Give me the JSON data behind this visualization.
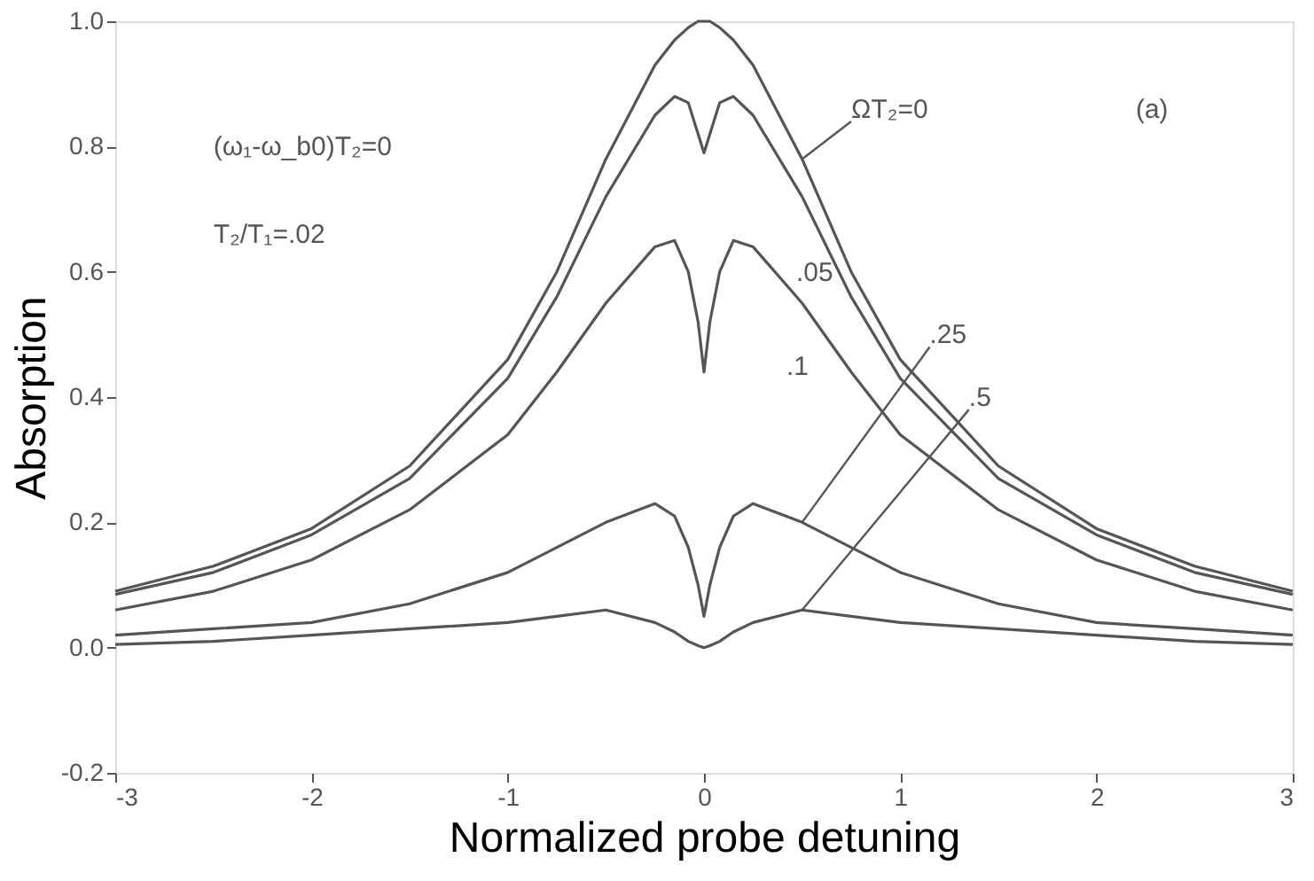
{
  "chart_data": {
    "type": "line",
    "xlabel": "Normalized probe detuning",
    "ylabel": "Absorption",
    "annotations": [
      "(ω₁-ω_b0)T₂=0",
      "T₂/T₁=.02",
      "(a)"
    ],
    "x": [
      -3,
      -2.5,
      -2,
      -1.5,
      -1,
      -0.75,
      -0.5,
      -0.25,
      -0.15,
      -0.08,
      -0.03,
      0,
      0.03,
      0.08,
      0.15,
      0.25,
      0.5,
      0.75,
      1,
      1.5,
      2,
      2.5,
      3
    ],
    "series": [
      {
        "name": "ΩT₂=0",
        "color": "#555555",
        "values": [
          0.09,
          0.13,
          0.19,
          0.29,
          0.46,
          0.6,
          0.78,
          0.93,
          0.97,
          0.99,
          1.0,
          1.0,
          1.0,
          0.99,
          0.97,
          0.93,
          0.78,
          0.6,
          0.46,
          0.29,
          0.19,
          0.13,
          0.09
        ]
      },
      {
        "name": ".05",
        "color": "#555555",
        "values": [
          0.085,
          0.12,
          0.18,
          0.27,
          0.43,
          0.56,
          0.72,
          0.85,
          0.88,
          0.87,
          0.82,
          0.79,
          0.82,
          0.87,
          0.88,
          0.85,
          0.72,
          0.56,
          0.43,
          0.27,
          0.18,
          0.12,
          0.085
        ]
      },
      {
        "name": ".1",
        "color": "#555555",
        "values": [
          0.06,
          0.09,
          0.14,
          0.22,
          0.34,
          0.44,
          0.55,
          0.64,
          0.65,
          0.6,
          0.52,
          0.44,
          0.52,
          0.6,
          0.65,
          0.64,
          0.55,
          0.44,
          0.34,
          0.22,
          0.14,
          0.09,
          0.06
        ]
      },
      {
        "name": ".25",
        "color": "#555555",
        "values": [
          0.02,
          0.03,
          0.04,
          0.07,
          0.12,
          0.16,
          0.2,
          0.23,
          0.21,
          0.16,
          0.1,
          0.05,
          0.1,
          0.16,
          0.21,
          0.23,
          0.2,
          0.16,
          0.12,
          0.07,
          0.04,
          0.03,
          0.02
        ]
      },
      {
        "name": ".5",
        "color": "#555555",
        "values": [
          0.005,
          0.01,
          0.02,
          0.03,
          0.04,
          0.05,
          0.06,
          0.04,
          0.025,
          0.01,
          0.003,
          0.0,
          0.003,
          0.01,
          0.025,
          0.04,
          0.06,
          0.05,
          0.04,
          0.03,
          0.02,
          0.01,
          0.005
        ]
      }
    ],
    "xlim": [
      -3,
      3
    ],
    "ylim": [
      -0.2,
      1.0
    ],
    "xticks": [
      -3,
      -2,
      -1,
      0,
      1,
      2,
      3
    ],
    "yticks": [
      {
        "value": -0.2,
        "label": "-0.2"
      },
      {
        "value": 0,
        "label": "0.0"
      },
      {
        "value": 0.2,
        "label": "0.2"
      },
      {
        "value": 0.4,
        "label": "0.4"
      },
      {
        "value": 0.6,
        "label": "0.6"
      },
      {
        "value": 0.8,
        "label": "0.8"
      },
      {
        "value": 1.0,
        "label": "1.0"
      }
    ],
    "grid": false,
    "legend": false,
    "marker": "none",
    "line_style": "solid"
  }
}
